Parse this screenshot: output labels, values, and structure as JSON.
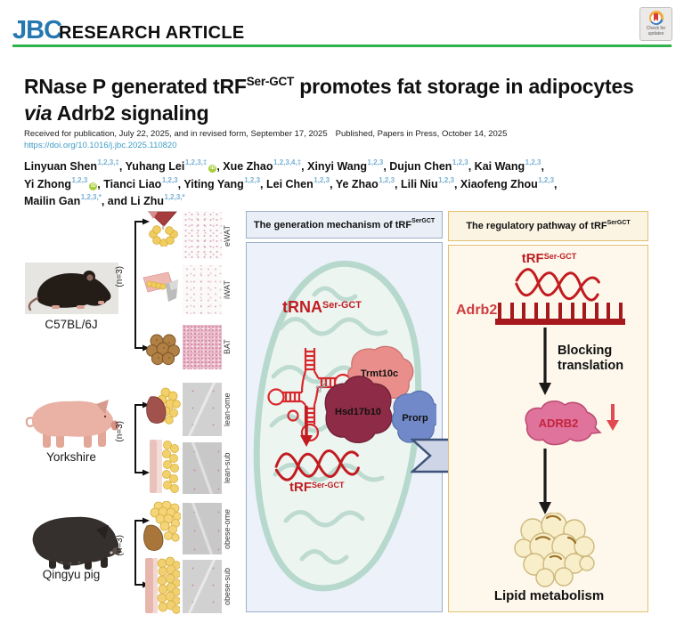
{
  "header": {
    "journal_logo": "JBC",
    "article_type": "RESEARCH ARTICLE",
    "check_updates": "Check for updates"
  },
  "article": {
    "title": {
      "l1a": "RNase P generated tRF",
      "l1sup": "Ser-GCT",
      "l1b": " promotes fat storage in ",
      "l2a": "adipocytes ",
      "l2i": "via",
      "l2b": " Adrb2 signaling"
    },
    "received": "Received for publication, July 22, 2025, and in revised form, September 17, 2025",
    "published": "Published, Papers in Press, October 14, 2025",
    "doi": "https://doi.org/10.1016/j.jbc.2025.110820",
    "author_lines": [
      [
        {
          "name": "Linyuan Shen",
          "sup": "1,2,3,‡",
          "orcid": false
        },
        {
          "name": "Yuhang Lei",
          "sup": "1,2,3,‡",
          "orcid": true
        },
        {
          "name": "Xue Zhao",
          "sup": "1,2,3,4,‡",
          "orcid": false
        },
        {
          "name": "Xinyi Wang",
          "sup": "1,2,3",
          "orcid": false
        },
        {
          "name": "Dujun Chen",
          "sup": "1,2,3",
          "orcid": false
        },
        {
          "name": "Kai Wang",
          "sup": "1,2,3",
          "orcid": false
        }
      ],
      [
        {
          "name": "Yi Zhong",
          "sup": "1,2,3",
          "orcid": true
        },
        {
          "name": "Tianci Liao",
          "sup": "1,2,3",
          "orcid": false
        },
        {
          "name": "Yiting Yang",
          "sup": "1,2,3",
          "orcid": false
        },
        {
          "name": "Lei Chen",
          "sup": "1,2,3",
          "orcid": false
        },
        {
          "name": "Ye Zhao",
          "sup": "1,2,3",
          "orcid": false
        },
        {
          "name": "Lili Niu",
          "sup": "1,2,3",
          "orcid": false
        },
        {
          "name": "Xiaofeng Zhou",
          "sup": "1,2,3",
          "orcid": false
        }
      ],
      [
        {
          "name": "Mailin Gan",
          "sup": "1,2,3,*",
          "orcid": false
        },
        {
          "prefix": "and ",
          "name": "Li Zhu",
          "sup": "1,2,3,*",
          "orcid": false,
          "last": true
        }
      ]
    ]
  },
  "figure": {
    "animals": [
      {
        "label": "C57BL/6J",
        "n_label": "(n=3)"
      },
      {
        "label": "Yorkshire",
        "n_label": "(n=3)"
      },
      {
        "label": "Qingyu pig",
        "n_label": "(n=3)"
      }
    ],
    "tissues": [
      "eWAT",
      "iWAT",
      "BAT",
      "lean-ome",
      "lean-sub",
      "obese-ome",
      "obese-sub"
    ],
    "mechanism_panel": {
      "title": "The generation mechanism of tRF",
      "title_sup": "SerGCT",
      "trna": "tRNA",
      "trna_sup": "Ser-GCT",
      "proteins": [
        "Trmt10c",
        "Hsd17b10",
        "Prorp"
      ],
      "trf": "tRF",
      "trf_sup": "Ser-GCT"
    },
    "pathway_panel": {
      "title": "The regulatory pathway of tRF",
      "title_sup": "SerGCT",
      "trf": "tRF",
      "trf_sup": "Ser-GCT",
      "mrna": "Adrb2",
      "mrna_tick_count": 11,
      "arrow1_label": "Blocking translation",
      "protein": "ADRB2",
      "outcome": "Lipid metabolism"
    }
  },
  "colors": {
    "jbc_blue": "#2578b0",
    "rule_green": "#2fb34f",
    "doi_link": "#3f9dc4",
    "superscript_blue": "#79b1d6",
    "figure_red": "#c01d22",
    "mechanism_panel_bg": "#ecf1fa",
    "mechanism_panel_border": "#9fafc9",
    "pathway_panel_bg": "#fdf8eb",
    "pathway_panel_border": "#e3c06e",
    "mitochondria_teal": "#b7d8cd",
    "trmt10c_salmon": "#e98e8a",
    "hsd17b10_maroon": "#8e2b46",
    "prorp_blue": "#7189c8",
    "adrb2_pink": "#e0739c",
    "lipid_yellow": "#f8efca",
    "orcid_green": "#a6ce39"
  }
}
